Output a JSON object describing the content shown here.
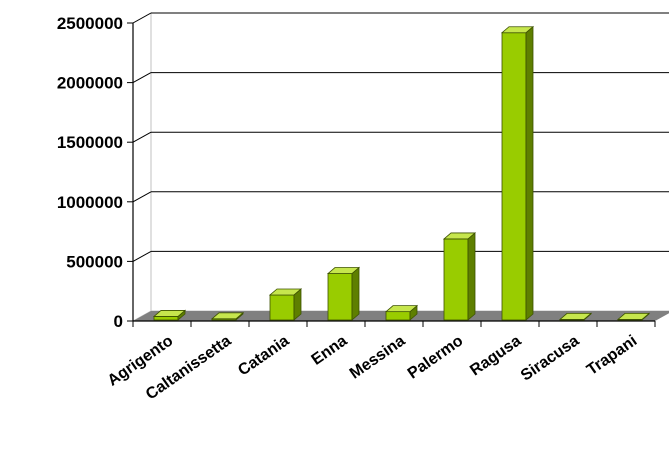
{
  "chart_data": {
    "type": "bar",
    "style": "3d",
    "categories": [
      "Agrigento",
      "Caltanissetta",
      "Catania",
      "Enna",
      "Messina",
      "Palermo",
      "Ragusa",
      "Siracusa",
      "Trapani"
    ],
    "values": [
      30000,
      10000,
      210000,
      390000,
      70000,
      680000,
      2410000,
      5000,
      5000
    ],
    "title": "",
    "xlabel": "",
    "ylabel": "",
    "ylim": [
      0,
      2500000
    ],
    "yticks": [
      "0",
      "500000",
      "1000000",
      "1500000",
      "2000000",
      "2500000"
    ],
    "grid": true,
    "legend": "none",
    "colors": {
      "bar_front": "#99cc00",
      "bar_side": "#5e7f00",
      "bar_top": "#c6e64d",
      "floor": "#808080",
      "wall": "#ffffff",
      "grid": "#000000"
    }
  }
}
